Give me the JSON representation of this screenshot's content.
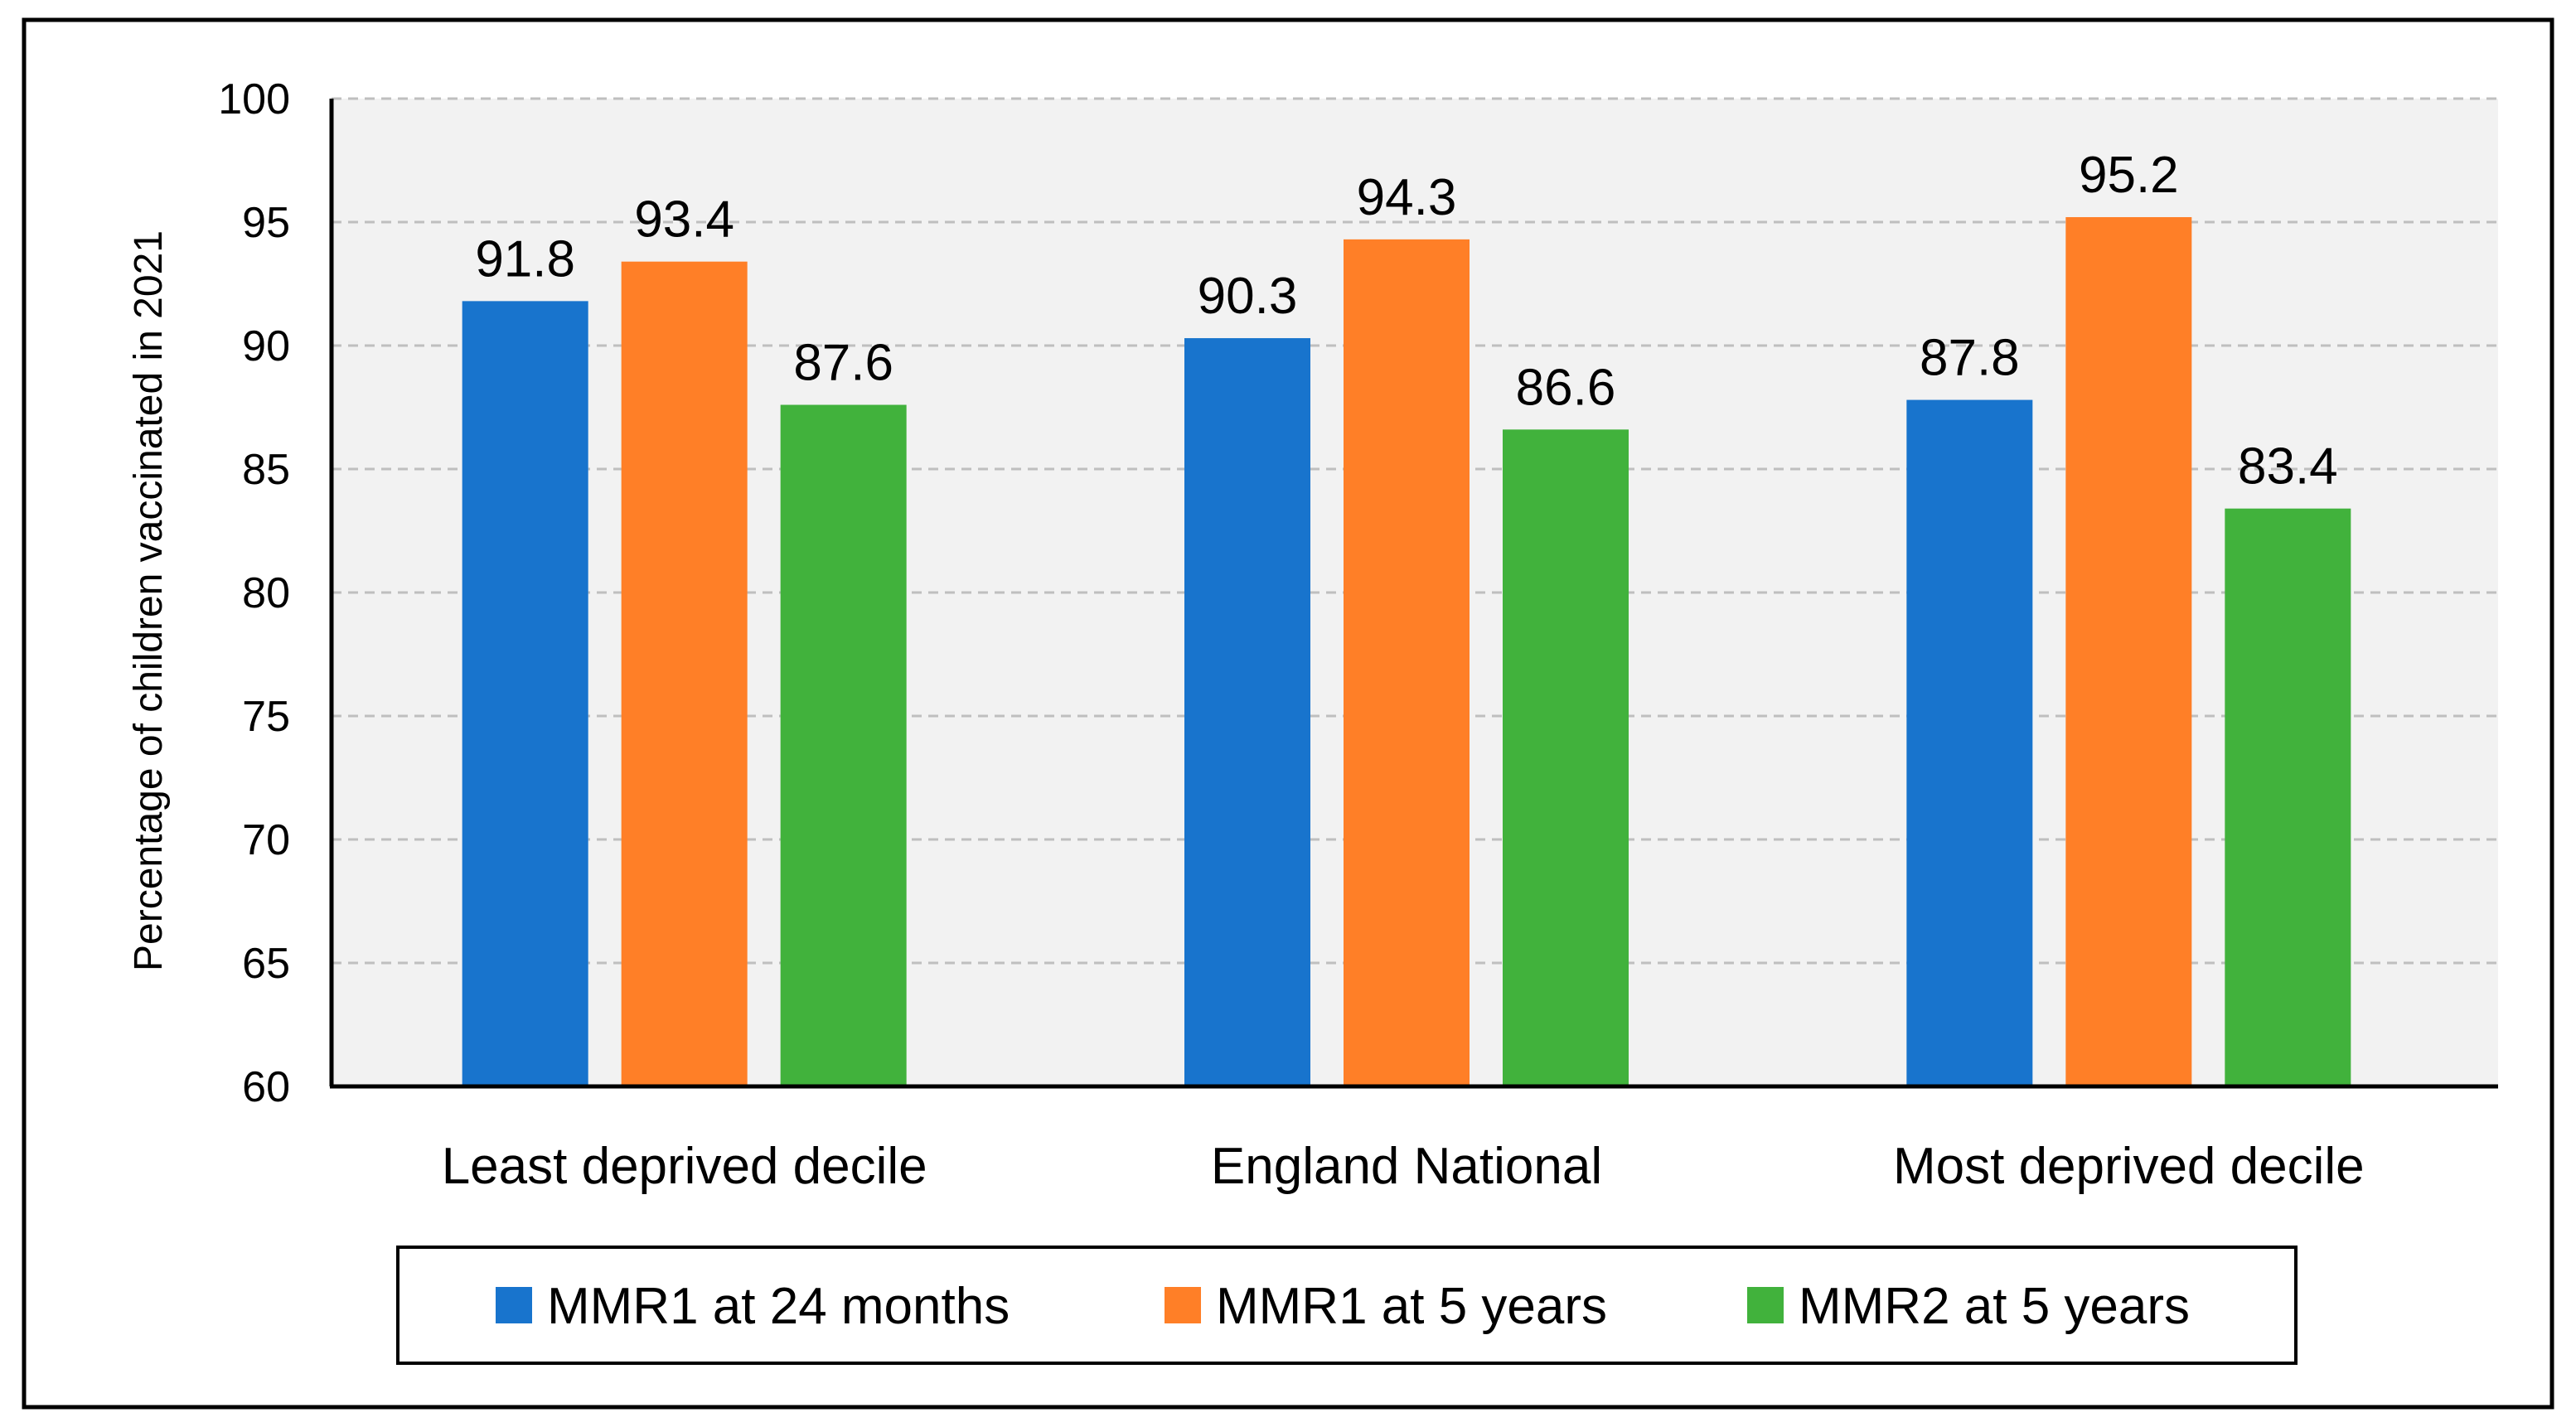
{
  "chart_data": {
    "type": "bar",
    "categories": [
      "Least deprived decile",
      "England National",
      "Most deprived decile"
    ],
    "series": [
      {
        "name": "MMR1 at 24 months",
        "values": [
          91.8,
          90.3,
          87.8
        ],
        "color": "#1874CD"
      },
      {
        "name": "MMR1 at 5 years",
        "values": [
          93.4,
          94.3,
          95.2
        ],
        "color": "#FF7F27"
      },
      {
        "name": "MMR2 at 5 years",
        "values": [
          87.6,
          86.6,
          83.4
        ],
        "color": "#41B23C"
      }
    ],
    "data_labels": [
      [
        "91.8",
        "93.4",
        "87.6"
      ],
      [
        "90.3",
        "94.3",
        "86.6"
      ],
      [
        "87.8",
        "95.2",
        "83.4"
      ]
    ],
    "ylabel": "Percentage of children vaccinated in 2021",
    "xlabel": "",
    "ylim": [
      60,
      100
    ],
    "yticks": [
      "60",
      "65",
      "70",
      "75",
      "80",
      "85",
      "90",
      "95",
      "100"
    ],
    "grid": "horizontal dashed",
    "plot_background": "#F2F2F2",
    "legend_position": "bottom"
  }
}
